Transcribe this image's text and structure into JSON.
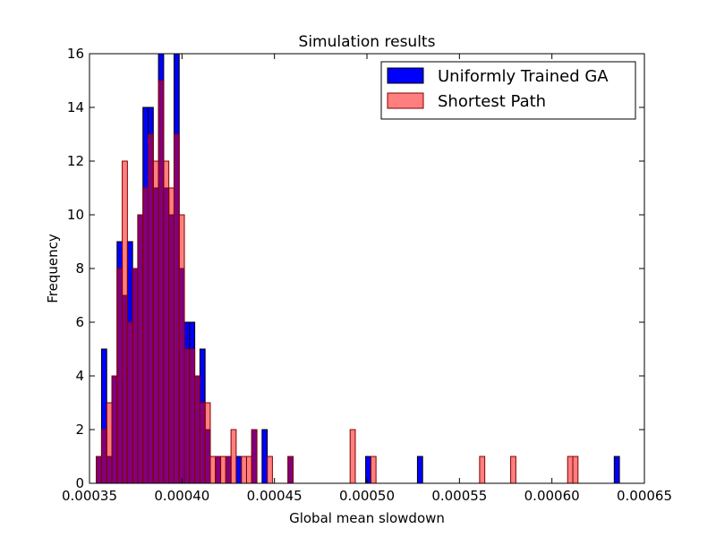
{
  "chart_data": {
    "type": "bar",
    "title": "Simulation results",
    "xlabel": "Global mean slowdown",
    "ylabel": "Frequency",
    "xlim": [
      0.00035,
      0.00065
    ],
    "ylim": [
      0,
      16
    ],
    "xticks": [
      0.00035,
      0.0004,
      0.00045,
      0.0005,
      0.00055,
      0.0006,
      0.00065
    ],
    "xtick_labels": [
      "0.00035",
      "0.00040",
      "0.00045",
      "0.00050",
      "0.00055",
      "0.00060",
      "0.00065"
    ],
    "yticks": [
      0,
      2,
      4,
      6,
      8,
      10,
      12,
      14,
      16
    ],
    "grid": false,
    "legend_position": "top-right",
    "series": [
      {
        "name": "Uniformly Trained GA",
        "color": "#0000ff",
        "edge": "#000000",
        "alpha": 1.0,
        "bin_width": 2.8e-06,
        "bins": [
          [
            0.0003537,
            1
          ],
          [
            0.0003565,
            5
          ],
          [
            0.0003593,
            1
          ],
          [
            0.0003621,
            4
          ],
          [
            0.0003649,
            9
          ],
          [
            0.0003677,
            7
          ],
          [
            0.0003705,
            9
          ],
          [
            0.0003733,
            8
          ],
          [
            0.0003761,
            10
          ],
          [
            0.0003789,
            14
          ],
          [
            0.0003817,
            14
          ],
          [
            0.0003845,
            11
          ],
          [
            0.0003873,
            16
          ],
          [
            0.0003901,
            11
          ],
          [
            0.0003929,
            10
          ],
          [
            0.0003957,
            16
          ],
          [
            0.0003985,
            8
          ],
          [
            0.0004013,
            6
          ],
          [
            0.0004041,
            6
          ],
          [
            0.0004069,
            4
          ],
          [
            0.0004097,
            5
          ],
          [
            0.0004125,
            2
          ],
          [
            0.0004181,
            1
          ],
          [
            0.0004237,
            1
          ],
          [
            0.0004293,
            1
          ],
          [
            0.0004377,
            2
          ],
          [
            0.0004433,
            2
          ],
          [
            0.0004573,
            1
          ],
          [
            0.0004993,
            1
          ],
          [
            0.0005273,
            1
          ],
          [
            0.0006337,
            1
          ]
        ]
      },
      {
        "name": "Shortest Path",
        "color": "#ff0000",
        "edge": "#800000",
        "alpha": 0.5,
        "bin_width": 2.8e-06,
        "bins": [
          [
            0.0003537,
            1
          ],
          [
            0.0003565,
            2
          ],
          [
            0.0003593,
            3
          ],
          [
            0.0003621,
            4
          ],
          [
            0.0003649,
            8
          ],
          [
            0.0003677,
            12
          ],
          [
            0.0003705,
            6
          ],
          [
            0.0003733,
            8
          ],
          [
            0.0003761,
            10
          ],
          [
            0.0003789,
            11
          ],
          [
            0.0003817,
            13
          ],
          [
            0.0003845,
            12
          ],
          [
            0.0003873,
            15
          ],
          [
            0.0003901,
            12
          ],
          [
            0.0003929,
            11
          ],
          [
            0.0003957,
            13
          ],
          [
            0.0003985,
            10
          ],
          [
            0.0004013,
            5
          ],
          [
            0.0004041,
            5
          ],
          [
            0.0004069,
            4
          ],
          [
            0.0004097,
            3
          ],
          [
            0.0004125,
            3
          ],
          [
            0.0004153,
            1
          ],
          [
            0.0004181,
            1
          ],
          [
            0.0004209,
            1
          ],
          [
            0.0004237,
            1
          ],
          [
            0.0004265,
            2
          ],
          [
            0.0004321,
            1
          ],
          [
            0.0004349,
            1
          ],
          [
            0.0004377,
            2
          ],
          [
            0.0004461,
            1
          ],
          [
            0.0004573,
            1
          ],
          [
            0.0004909,
            2
          ],
          [
            0.0005021,
            1
          ],
          [
            0.0005609,
            1
          ],
          [
            0.0005777,
            1
          ],
          [
            0.0006085,
            1
          ],
          [
            0.0006113,
            1
          ]
        ]
      }
    ]
  }
}
